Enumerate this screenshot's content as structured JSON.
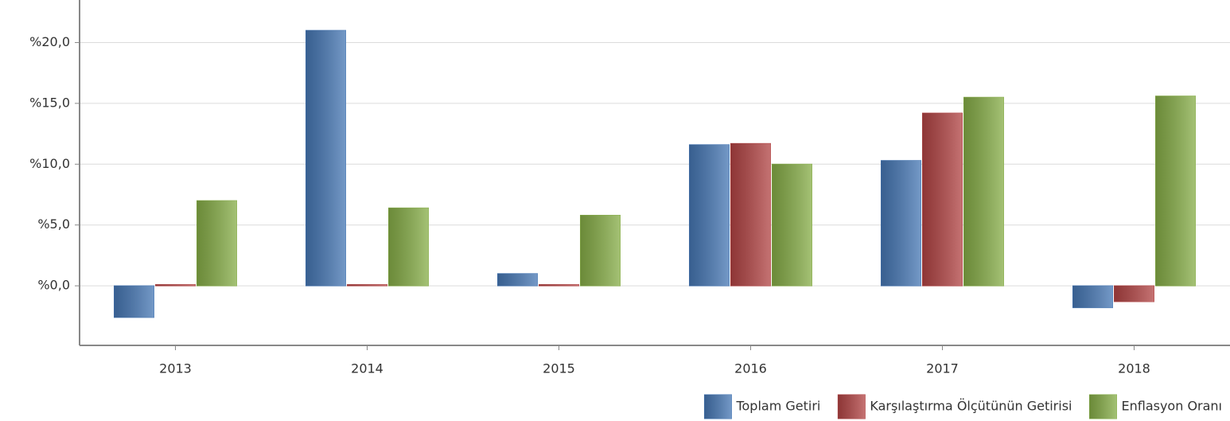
{
  "chart_data": {
    "type": "bar",
    "categories": [
      "2013",
      "2014",
      "2015",
      "2016",
      "2017",
      "2018"
    ],
    "series": [
      {
        "name": "Toplam Getiri",
        "color": "#4677b4",
        "values": [
          -2.6,
          21.0,
          1.0,
          11.6,
          10.3,
          -1.8
        ]
      },
      {
        "name": "Karşılaştırma Ölçütünün Getirisi",
        "color": "#b24444",
        "values": [
          0.1,
          0.1,
          0.1,
          11.7,
          14.2,
          -1.3
        ]
      },
      {
        "name": "Enflasyon Oranı",
        "color": "#86ad47",
        "values": [
          7.0,
          6.4,
          5.8,
          10.0,
          15.5,
          15.6
        ]
      }
    ],
    "ylim": [
      -4.9,
      23.5
    ],
    "yticks": [
      {
        "value": 0,
        "label": "%0,0"
      },
      {
        "value": 5,
        "label": "%5,0"
      },
      {
        "value": 10,
        "label": "%10,0"
      },
      {
        "value": 15,
        "label": "%15,0"
      },
      {
        "value": 20,
        "label": "%20,0"
      }
    ],
    "grid": true,
    "legend": "bottom-right"
  }
}
